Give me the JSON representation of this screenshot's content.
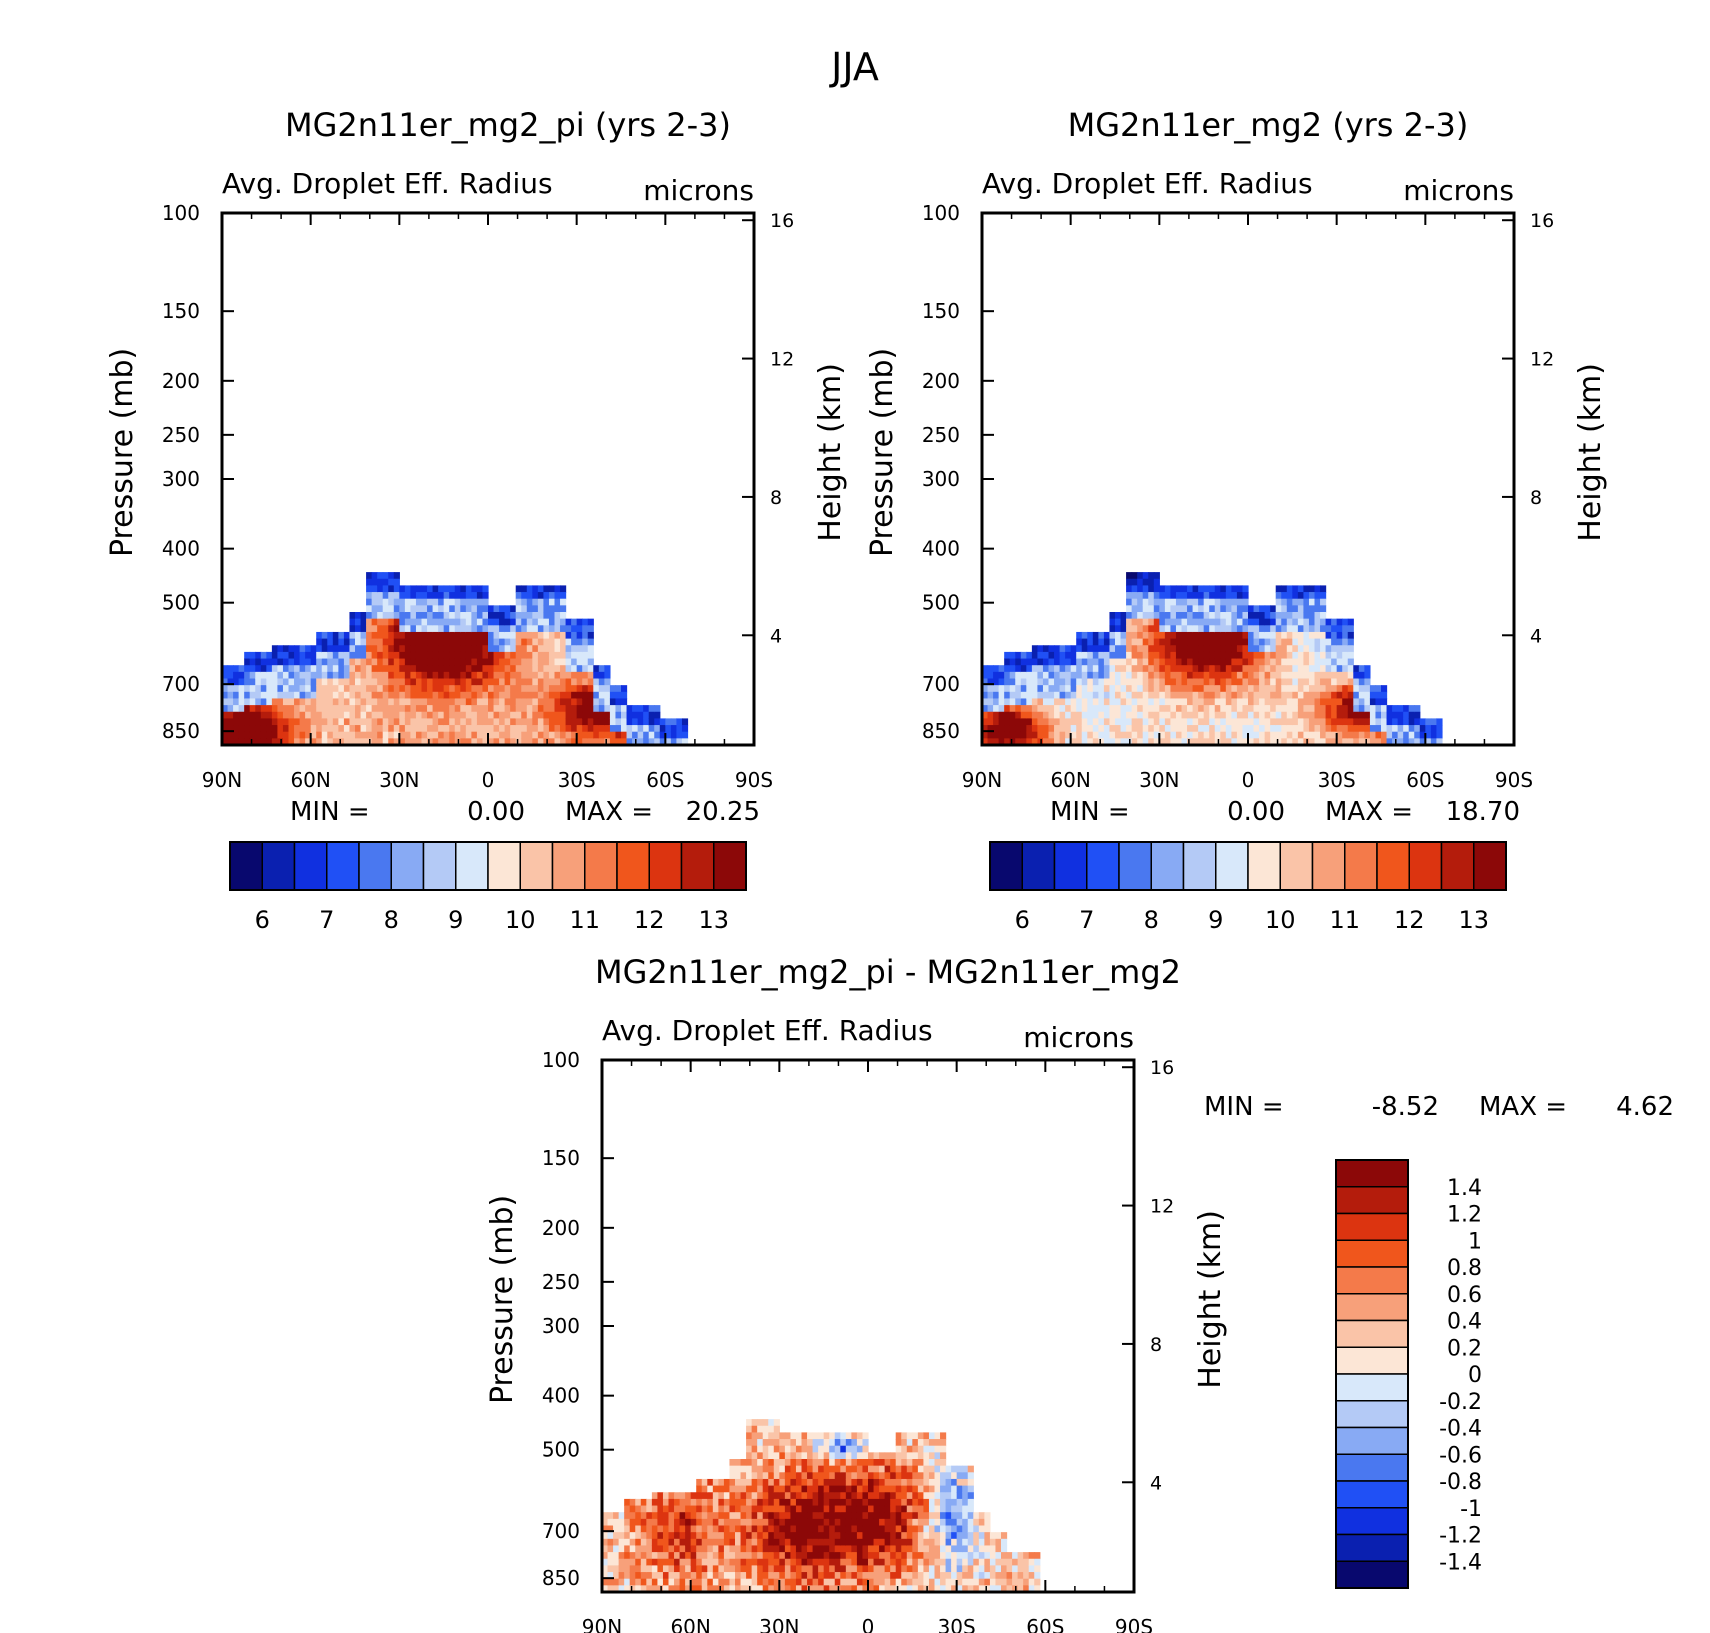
{
  "figure_title": "JJA",
  "chart_data": [
    {
      "type": "heatmap",
      "title": "MG2n11er_mg2_pi (yrs 2-3)",
      "subtitle_left": "Avg. Droplet Eff. Radius",
      "subtitle_right": "microns",
      "xlabel": "",
      "ylabel": "Pressure (mb)",
      "ylabel_right": "Height (km)",
      "x_ticks": [
        "90N",
        "60N",
        "30N",
        "0",
        "30S",
        "60S",
        "90S"
      ],
      "y_ticks": [
        "100",
        "150",
        "200",
        "250",
        "300",
        "400",
        "500",
        "700",
        "850"
      ],
      "y_ticks_right": [
        "16",
        "12",
        "8",
        "4"
      ],
      "min_label": "MIN =",
      "min_value": "0.00",
      "max_label": "MAX =",
      "max_value": "20.25",
      "colorbar_labels": [
        "6",
        "7",
        "8",
        "9",
        "10",
        "11",
        "12",
        "13"
      ]
    },
    {
      "type": "heatmap",
      "title": "MG2n11er_mg2 (yrs 2-3)",
      "subtitle_left": "Avg. Droplet Eff. Radius",
      "subtitle_right": "microns",
      "xlabel": "",
      "ylabel": "Pressure (mb)",
      "ylabel_right": "Height (km)",
      "x_ticks": [
        "90N",
        "60N",
        "30N",
        "0",
        "30S",
        "60S",
        "90S"
      ],
      "y_ticks": [
        "100",
        "150",
        "200",
        "250",
        "300",
        "400",
        "500",
        "700",
        "850"
      ],
      "y_ticks_right": [
        "16",
        "12",
        "8",
        "4"
      ],
      "min_label": "MIN =",
      "min_value": "0.00",
      "max_label": "MAX =",
      "max_value": "18.70",
      "colorbar_labels": [
        "6",
        "7",
        "8",
        "9",
        "10",
        "11",
        "12",
        "13"
      ]
    },
    {
      "type": "heatmap",
      "title": "MG2n11er_mg2_pi - MG2n11er_mg2",
      "subtitle_left": "Avg. Droplet Eff. Radius",
      "subtitle_right": "microns",
      "xlabel": "",
      "ylabel": "Pressure (mb)",
      "ylabel_right": "Height (km)",
      "x_ticks": [
        "90N",
        "60N",
        "30N",
        "0",
        "30S",
        "60S",
        "90S"
      ],
      "y_ticks": [
        "100",
        "150",
        "200",
        "250",
        "300",
        "400",
        "500",
        "700",
        "850"
      ],
      "y_ticks_right": [
        "16",
        "12",
        "8",
        "4"
      ],
      "min_label": "MIN =",
      "min_value": "-8.52",
      "max_label": "MAX =",
      "max_value": "4.62",
      "colorbar_labels": [
        "1.4",
        "1.2",
        "1",
        "0.8",
        "0.6",
        "0.4",
        "0.2",
        "0",
        "-0.2",
        "-0.4",
        "-0.6",
        "-0.8",
        "-1",
        "-1.2",
        "-1.4"
      ]
    }
  ],
  "colors": {
    "scale": [
      "#08086e",
      "#0a20b0",
      "#1030e0",
      "#2050f5",
      "#4a78f0",
      "#88aaf4",
      "#b4caf6",
      "#d8e8fa",
      "#fce6d6",
      "#fac4a8",
      "#f7a07a",
      "#f47a4a",
      "#f0561c",
      "#dc3410",
      "#b41c0c",
      "#8c0808"
    ],
    "diverging": [
      "#8c0808",
      "#b41c0c",
      "#dc3410",
      "#f0561c",
      "#f47a4a",
      "#f7a07a",
      "#fac4a8",
      "#fce6d6",
      "#d8e8fa",
      "#b4caf6",
      "#88aaf4",
      "#4a78f0",
      "#2050f5",
      "#1030e0",
      "#0a20b0",
      "#08086e"
    ]
  }
}
